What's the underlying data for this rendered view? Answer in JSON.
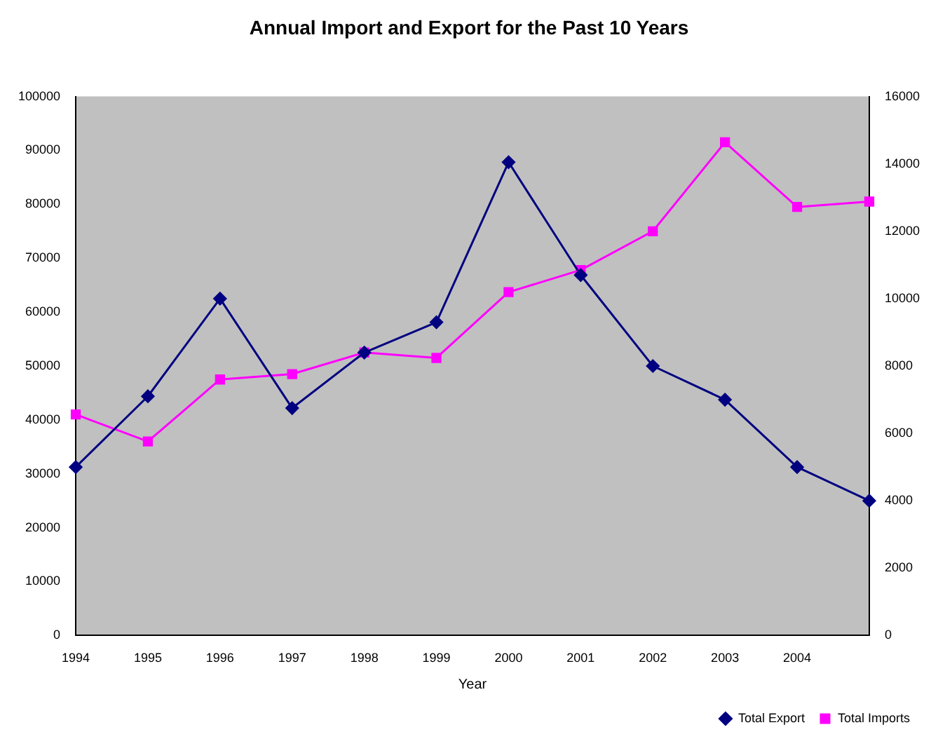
{
  "chart_data": {
    "type": "line",
    "title": "Annual Import and Export for the Past 10 Years",
    "xlabel": "Year",
    "categories": [
      "1994",
      "1995",
      "1996",
      "1997",
      "1998",
      "1999",
      "2000",
      "2001",
      "2002",
      "2003",
      "2004",
      null
    ],
    "series": [
      {
        "name": "Total Imports",
        "color": "#ff00ff",
        "marker": "square",
        "values": [
          41000,
          36000,
          47500,
          48500,
          52500,
          51500,
          63700,
          67800,
          75000,
          91500,
          79500,
          80500
        ]
      },
      {
        "name": "Total Export",
        "color": "#000080",
        "marker": "diamond",
        "axis": "y2",
        "values": [
          5000,
          7100,
          10000,
          6750,
          8400,
          9300,
          14050,
          10700,
          8000,
          7000,
          5000,
          4000
        ]
      }
    ],
    "ylim": [
      0,
      100000
    ],
    "yticks": [
      0,
      10000,
      20000,
      30000,
      40000,
      50000,
      60000,
      70000,
      80000,
      90000,
      100000
    ],
    "y2lim": [
      0,
      16000
    ],
    "y2ticks": [
      0,
      2000,
      4000,
      6000,
      8000,
      10000,
      12000,
      14000,
      16000
    ],
    "grid": false,
    "legend": "bottom right"
  }
}
